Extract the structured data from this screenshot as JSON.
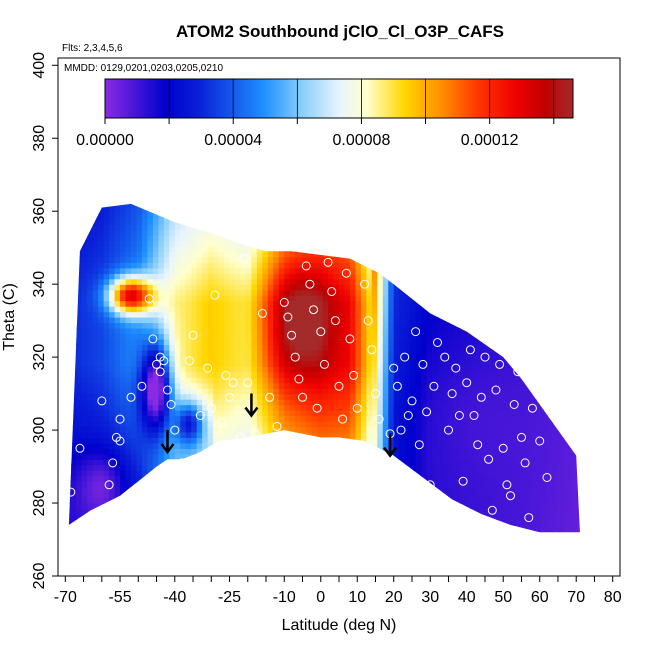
{
  "chart_data": {
    "type": "heatmap",
    "title": "ATOM2 Southbound jClO_Cl_O3P_CAFS",
    "flights_note": "Flts: 2,3,4,5,6",
    "dates_note": "MMDD: 0129,0201,0203,0205,0210",
    "xlabel": "Latitude (deg N)",
    "ylabel": "Theta (C)",
    "xlim": [
      -72,
      82
    ],
    "ylim": [
      260,
      402
    ],
    "xticks_minor": [
      -70,
      -65,
      -60,
      -55,
      -50,
      -45,
      -40,
      -35,
      -30,
      -25,
      -20,
      -15,
      -10,
      -5,
      0,
      5,
      10,
      15,
      20,
      25,
      30,
      35,
      40,
      45,
      50,
      55,
      60,
      65,
      70,
      75,
      80
    ],
    "xtick_labels": [
      {
        "v": -70,
        "t": "-70"
      },
      {
        "v": -55,
        "t": "-55"
      },
      {
        "v": -40,
        "t": "-40"
      },
      {
        "v": -25,
        "t": "-25"
      },
      {
        "v": -10,
        "t": "-10"
      },
      {
        "v": 0,
        "t": "0"
      },
      {
        "v": 10,
        "t": "10"
      },
      {
        "v": 20,
        "t": "20"
      },
      {
        "v": 30,
        "t": "30"
      },
      {
        "v": 40,
        "t": "40"
      },
      {
        "v": 50,
        "t": "50"
      },
      {
        "v": 60,
        "t": "60"
      },
      {
        "v": 70,
        "t": "70"
      },
      {
        "v": 80,
        "t": "80"
      }
    ],
    "ytick_labels": [
      {
        "v": 260,
        "t": "260"
      },
      {
        "v": 280,
        "t": "280"
      },
      {
        "v": 300,
        "t": "300"
      },
      {
        "v": 320,
        "t": "320"
      },
      {
        "v": 340,
        "t": "340"
      },
      {
        "v": 360,
        "t": "360"
      },
      {
        "v": 380,
        "t": "380"
      },
      {
        "v": 400,
        "t": "400"
      }
    ],
    "colorbar": {
      "min": 0.0,
      "max": 0.000146,
      "tick_labels": [
        {
          "v": 0.0,
          "t": "0.00000"
        },
        {
          "v": 4e-05,
          "t": "0.00004"
        },
        {
          "v": 8e-05,
          "t": "0.00008"
        },
        {
          "v": 0.00012,
          "t": "0.00012"
        }
      ],
      "divisions": [
        2e-05,
        4e-05,
        6e-05,
        8e-05,
        0.0001,
        0.00012,
        0.00014
      ],
      "stops": [
        {
          "f": 0.0,
          "c": "#8a2be2"
        },
        {
          "f": 0.13,
          "c": "#0000cd"
        },
        {
          "f": 0.2,
          "c": "#0a1fd8"
        },
        {
          "f": 0.34,
          "c": "#1e90ff"
        },
        {
          "f": 0.42,
          "c": "#87cefa"
        },
        {
          "f": 0.5,
          "c": "#e8f4ff"
        },
        {
          "f": 0.56,
          "c": "#ffffcc"
        },
        {
          "f": 0.64,
          "c": "#ffd700"
        },
        {
          "f": 0.72,
          "c": "#ff8c00"
        },
        {
          "f": 0.8,
          "c": "#ff3300"
        },
        {
          "f": 0.88,
          "c": "#ee0000"
        },
        {
          "f": 0.94,
          "c": "#c00000"
        },
        {
          "f": 1.0,
          "c": "#a52a2a"
        }
      ]
    },
    "domain": {
      "top": [
        [
          -66,
          349
        ],
        [
          -60,
          361
        ],
        [
          -52,
          362
        ],
        [
          -40,
          357
        ],
        [
          -30,
          354
        ],
        [
          -22,
          351
        ],
        [
          -15,
          349
        ],
        [
          -8,
          349
        ],
        [
          0,
          348
        ],
        [
          8,
          347
        ],
        [
          16,
          343
        ],
        [
          20,
          340
        ],
        [
          30,
          332
        ],
        [
          40,
          327
        ],
        [
          50,
          320
        ],
        [
          55,
          314
        ],
        [
          60,
          307
        ],
        [
          65,
          300
        ],
        [
          70,
          293
        ],
        [
          71,
          272
        ]
      ],
      "bottom": [
        [
          -69,
          274
        ],
        [
          -63,
          278
        ],
        [
          -55,
          282
        ],
        [
          -50,
          286
        ],
        [
          -45,
          290
        ],
        [
          -42,
          292
        ],
        [
          -38,
          292
        ],
        [
          -33,
          294
        ],
        [
          -28,
          297
        ],
        [
          -20,
          298
        ],
        [
          -10,
          300
        ],
        [
          0,
          298
        ],
        [
          5,
          298
        ],
        [
          12,
          297
        ],
        [
          20,
          293
        ],
        [
          28,
          287
        ],
        [
          36,
          281
        ],
        [
          44,
          277
        ],
        [
          52,
          274
        ],
        [
          60,
          272
        ],
        [
          68,
          272
        ],
        [
          71,
          272
        ]
      ]
    },
    "field_model": {
      "base": [
        {
          "lat": -70,
          "v": 3e-05
        },
        {
          "lat": -60,
          "v": 3.6e-05
        },
        {
          "lat": -50,
          "v": 5e-05
        },
        {
          "lat": -40,
          "v": 8.5e-05
        },
        {
          "lat": -30,
          "v": 9.5e-05
        },
        {
          "lat": -20,
          "v": 8.8e-05
        },
        {
          "lat": -10,
          "v": 0.000118
        },
        {
          "lat": 0,
          "v": 0.000128
        },
        {
          "lat": 8,
          "v": 0.000126
        },
        {
          "lat": 14,
          "v": 9e-05
        },
        {
          "lat": 20,
          "v": 2.6e-05
        },
        {
          "lat": 30,
          "v": 1.6e-05
        },
        {
          "lat": 45,
          "v": 1.3e-05
        },
        {
          "lat": 55,
          "v": 1.1e-05
        },
        {
          "lat": 72,
          "v": 6e-06
        }
      ],
      "blobs": [
        {
          "lat": -45,
          "theta": 312,
          "rlat": 4,
          "rth": 12,
          "amp": -7e-05
        },
        {
          "lat": -36,
          "theta": 302,
          "rlat": 4,
          "rth": 6,
          "amp": -4.5e-05
        },
        {
          "lat": -52,
          "theta": 337,
          "rlat": 6,
          "rth": 5,
          "amp": 8.5e-05
        },
        {
          "lat": -6,
          "theta": 330,
          "rlat": 9,
          "rth": 16,
          "amp": 3e-05
        },
        {
          "lat": -60,
          "theta": 285,
          "rlat": 7,
          "rth": 10,
          "amp": -1.8e-05
        },
        {
          "lat": 40,
          "theta": 305,
          "rlat": 18,
          "rth": 20,
          "amp": -4e-06
        }
      ]
    },
    "observations": [
      [
        -68.5,
        283
      ],
      [
        -66,
        295
      ],
      [
        -65,
        274
      ],
      [
        -60,
        308
      ],
      [
        -58,
        285
      ],
      [
        -57,
        291
      ],
      [
        -56,
        298
      ],
      [
        -55,
        297
      ],
      [
        -55,
        303
      ],
      [
        -54,
        281
      ],
      [
        -52,
        309
      ],
      [
        -49,
        312
      ],
      [
        -47,
        336
      ],
      [
        -46,
        325
      ],
      [
        -45,
        318
      ],
      [
        -44,
        320
      ],
      [
        -44,
        316
      ],
      [
        -43,
        319
      ],
      [
        -42,
        311
      ],
      [
        -41,
        307
      ],
      [
        -40,
        300
      ],
      [
        -38,
        291
      ],
      [
        -36,
        319
      ],
      [
        -35,
        326
      ],
      [
        -33,
        304
      ],
      [
        -31,
        317
      ],
      [
        -30,
        306
      ],
      [
        -29,
        337
      ],
      [
        -27,
        302
      ],
      [
        -26,
        315
      ],
      [
        -25,
        309
      ],
      [
        -24,
        313
      ],
      [
        -22,
        298
      ],
      [
        -21,
        347
      ],
      [
        -20,
        313
      ],
      [
        -19,
        305
      ],
      [
        -18,
        299
      ],
      [
        -16,
        332
      ],
      [
        -14,
        309
      ],
      [
        -12,
        301
      ],
      [
        -10,
        335
      ],
      [
        -9,
        331
      ],
      [
        -8,
        326
      ],
      [
        -7,
        320
      ],
      [
        -6,
        314
      ],
      [
        -5,
        309
      ],
      [
        -4,
        345
      ],
      [
        -3,
        340
      ],
      [
        -2,
        333
      ],
      [
        -1,
        306
      ],
      [
        0,
        327
      ],
      [
        1,
        318
      ],
      [
        2,
        346
      ],
      [
        3,
        338
      ],
      [
        4,
        330
      ],
      [
        5,
        312
      ],
      [
        6,
        303
      ],
      [
        7,
        343
      ],
      [
        8,
        325
      ],
      [
        9,
        315
      ],
      [
        10,
        306
      ],
      [
        11,
        349
      ],
      [
        12,
        340
      ],
      [
        13,
        330
      ],
      [
        14,
        322
      ],
      [
        15,
        310
      ],
      [
        16,
        303
      ],
      [
        18,
        344
      ],
      [
        19,
        299
      ],
      [
        20,
        317
      ],
      [
        21,
        312
      ],
      [
        22,
        300
      ],
      [
        23,
        320
      ],
      [
        24,
        304
      ],
      [
        25,
        308
      ],
      [
        26,
        327
      ],
      [
        27,
        296
      ],
      [
        28,
        318
      ],
      [
        29,
        305
      ],
      [
        30,
        285
      ],
      [
        31,
        312
      ],
      [
        32,
        324
      ],
      [
        34,
        320
      ],
      [
        35,
        300
      ],
      [
        36,
        310
      ],
      [
        37,
        317
      ],
      [
        38,
        304
      ],
      [
        39,
        286
      ],
      [
        40,
        313
      ],
      [
        41,
        322
      ],
      [
        42,
        304
      ],
      [
        43,
        296
      ],
      [
        44,
        309
      ],
      [
        45,
        320
      ],
      [
        46,
        292
      ],
      [
        47,
        278
      ],
      [
        48,
        311
      ],
      [
        49,
        318
      ],
      [
        50,
        295
      ],
      [
        51,
        285
      ],
      [
        52,
        282
      ],
      [
        53,
        307
      ],
      [
        54,
        316
      ],
      [
        55,
        298
      ],
      [
        56,
        291
      ],
      [
        57,
        276
      ],
      [
        58,
        306
      ],
      [
        60,
        297
      ],
      [
        62,
        287
      ]
    ],
    "arrows": [
      {
        "lat": -42,
        "theta": 294
      },
      {
        "lat": -19,
        "theta": 304
      },
      {
        "lat": 19,
        "theta": 293
      }
    ]
  }
}
